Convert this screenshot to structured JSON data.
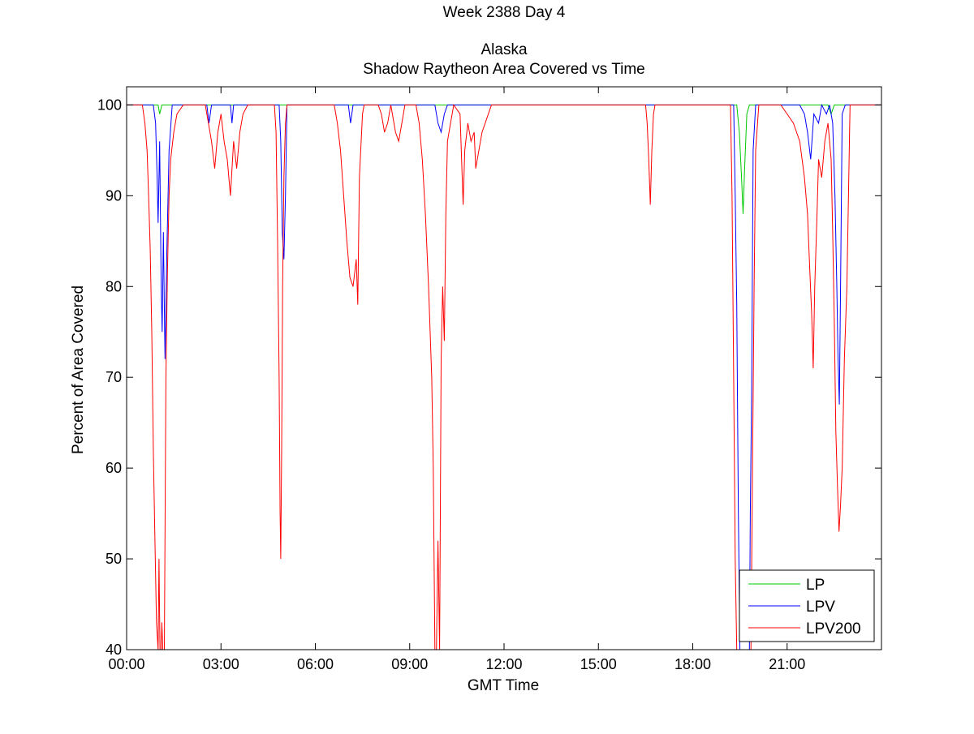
{
  "figure": {
    "title_line1": "Week 2388 Day 4",
    "title_line2": "Alaska",
    "title_line3": "Shadow Raytheon Area Covered vs Time"
  },
  "chart_data": {
    "type": "line",
    "title": "Week 2388 Day 4 / Alaska / Shadow Raytheon Area Covered vs Time",
    "xlabel": "GMT Time",
    "ylabel": "Percent of Area Covered",
    "x_unit": "hours GMT",
    "xlim": [
      0,
      24
    ],
    "ylim": [
      40,
      102
    ],
    "x_ticks": [
      0,
      3,
      6,
      9,
      12,
      15,
      18,
      21
    ],
    "x_tick_labels": [
      "00:00",
      "03:00",
      "06:00",
      "09:00",
      "12:00",
      "15:00",
      "18:00",
      "21:00"
    ],
    "y_ticks": [
      40,
      50,
      60,
      70,
      80,
      90,
      100
    ],
    "y_tick_labels": [
      "40",
      "50",
      "60",
      "70",
      "80",
      "90",
      "100"
    ],
    "grid": false,
    "legend_position": "bottom-right",
    "series": [
      {
        "name": "LP",
        "color": "#00c800",
        "points": [
          [
            0,
            100
          ],
          [
            1.0,
            100
          ],
          [
            1.05,
            99
          ],
          [
            1.12,
            100
          ],
          [
            19.4,
            100
          ],
          [
            19.48,
            97
          ],
          [
            19.55,
            92
          ],
          [
            19.6,
            88
          ],
          [
            19.65,
            93
          ],
          [
            19.72,
            99
          ],
          [
            19.8,
            100
          ],
          [
            22.3,
            100
          ],
          [
            22.4,
            99
          ],
          [
            22.5,
            100
          ],
          [
            24,
            100
          ]
        ]
      },
      {
        "name": "LPV",
        "color": "#0000ff",
        "points": [
          [
            0,
            100
          ],
          [
            0.85,
            100
          ],
          [
            0.92,
            98
          ],
          [
            0.97,
            92
          ],
          [
            1.0,
            87
          ],
          [
            1.05,
            96
          ],
          [
            1.1,
            80
          ],
          [
            1.13,
            75
          ],
          [
            1.17,
            86
          ],
          [
            1.22,
            72
          ],
          [
            1.28,
            84
          ],
          [
            1.35,
            95
          ],
          [
            1.45,
            100
          ],
          [
            2.55,
            100
          ],
          [
            2.62,
            98
          ],
          [
            2.7,
            100
          ],
          [
            3.3,
            100
          ],
          [
            3.35,
            98
          ],
          [
            3.4,
            100
          ],
          [
            4.85,
            100
          ],
          [
            4.9,
            96
          ],
          [
            4.95,
            86
          ],
          [
            5.0,
            83
          ],
          [
            5.05,
            90
          ],
          [
            5.1,
            100
          ],
          [
            7.05,
            100
          ],
          [
            7.12,
            98
          ],
          [
            7.2,
            100
          ],
          [
            9.8,
            100
          ],
          [
            9.9,
            98
          ],
          [
            10.0,
            97
          ],
          [
            10.1,
            99
          ],
          [
            10.2,
            100
          ],
          [
            19.3,
            100
          ],
          [
            19.35,
            90
          ],
          [
            19.4,
            78
          ],
          [
            19.45,
            55
          ],
          [
            19.5,
            40
          ],
          [
            19.55,
            40
          ],
          [
            19.6,
            40
          ],
          [
            19.65,
            40
          ],
          [
            19.7,
            40
          ],
          [
            19.75,
            40
          ],
          [
            19.8,
            40
          ],
          [
            19.83,
            55
          ],
          [
            19.87,
            68
          ],
          [
            19.92,
            95
          ],
          [
            20.0,
            100
          ],
          [
            21.4,
            100
          ],
          [
            21.55,
            99
          ],
          [
            21.65,
            97
          ],
          [
            21.75,
            94
          ],
          [
            21.85,
            99
          ],
          [
            22.0,
            98
          ],
          [
            22.1,
            100
          ],
          [
            22.25,
            99
          ],
          [
            22.35,
            100
          ],
          [
            22.45,
            98
          ],
          [
            22.52,
            90
          ],
          [
            22.58,
            80
          ],
          [
            22.62,
            72
          ],
          [
            22.66,
            67
          ],
          [
            22.7,
            80
          ],
          [
            22.75,
            99
          ],
          [
            22.85,
            100
          ],
          [
            24,
            100
          ]
        ]
      },
      {
        "name": "LPV200",
        "color": "#ff0000",
        "points": [
          [
            0,
            100
          ],
          [
            0.5,
            100
          ],
          [
            0.58,
            98
          ],
          [
            0.65,
            95
          ],
          [
            0.7,
            90
          ],
          [
            0.75,
            84
          ],
          [
            0.8,
            75
          ],
          [
            0.85,
            62
          ],
          [
            0.9,
            52
          ],
          [
            0.95,
            43
          ],
          [
            1.0,
            40
          ],
          [
            1.03,
            50
          ],
          [
            1.06,
            40
          ],
          [
            1.1,
            40
          ],
          [
            1.12,
            43
          ],
          [
            1.15,
            40
          ],
          [
            1.2,
            40
          ],
          [
            1.25,
            70
          ],
          [
            1.3,
            82
          ],
          [
            1.35,
            90
          ],
          [
            1.4,
            94
          ],
          [
            1.5,
            97
          ],
          [
            1.6,
            99
          ],
          [
            1.8,
            100
          ],
          [
            2.5,
            100
          ],
          [
            2.6,
            98
          ],
          [
            2.7,
            96
          ],
          [
            2.8,
            93
          ],
          [
            2.9,
            97
          ],
          [
            3.0,
            99
          ],
          [
            3.1,
            96
          ],
          [
            3.2,
            94
          ],
          [
            3.3,
            90
          ],
          [
            3.4,
            96
          ],
          [
            3.5,
            93
          ],
          [
            3.6,
            97
          ],
          [
            3.7,
            99
          ],
          [
            3.85,
            100
          ],
          [
            4.7,
            100
          ],
          [
            4.75,
            97
          ],
          [
            4.8,
            85
          ],
          [
            4.85,
            70
          ],
          [
            4.88,
            55
          ],
          [
            4.9,
            50
          ],
          [
            4.93,
            62
          ],
          [
            4.96,
            80
          ],
          [
            5.0,
            92
          ],
          [
            5.05,
            98
          ],
          [
            5.1,
            100
          ],
          [
            6.6,
            100
          ],
          [
            6.7,
            98
          ],
          [
            6.8,
            95
          ],
          [
            6.9,
            90
          ],
          [
            7.0,
            85
          ],
          [
            7.1,
            81
          ],
          [
            7.2,
            80
          ],
          [
            7.3,
            83
          ],
          [
            7.35,
            78
          ],
          [
            7.4,
            92
          ],
          [
            7.5,
            99
          ],
          [
            7.55,
            100
          ],
          [
            8.0,
            100
          ],
          [
            8.1,
            99
          ],
          [
            8.2,
            97
          ],
          [
            8.3,
            98
          ],
          [
            8.4,
            100
          ],
          [
            8.55,
            97
          ],
          [
            8.65,
            96
          ],
          [
            8.75,
            98
          ],
          [
            8.85,
            100
          ],
          [
            9.2,
            100
          ],
          [
            9.3,
            98
          ],
          [
            9.4,
            94
          ],
          [
            9.5,
            88
          ],
          [
            9.6,
            80
          ],
          [
            9.7,
            70
          ],
          [
            9.75,
            60
          ],
          [
            9.8,
            40
          ],
          [
            9.85,
            40
          ],
          [
            9.9,
            52
          ],
          [
            9.95,
            40
          ],
          [
            10.0,
            72
          ],
          [
            10.05,
            80
          ],
          [
            10.1,
            74
          ],
          [
            10.15,
            88
          ],
          [
            10.2,
            96
          ],
          [
            10.3,
            98
          ],
          [
            10.4,
            100
          ],
          [
            10.6,
            99
          ],
          [
            10.7,
            89
          ],
          [
            10.75,
            95
          ],
          [
            10.85,
            98
          ],
          [
            10.95,
            96
          ],
          [
            11.05,
            97
          ],
          [
            11.1,
            93
          ],
          [
            11.2,
            95
          ],
          [
            11.3,
            97
          ],
          [
            11.4,
            98
          ],
          [
            11.5,
            99
          ],
          [
            11.6,
            100
          ],
          [
            16.5,
            100
          ],
          [
            16.55,
            98
          ],
          [
            16.6,
            94
          ],
          [
            16.65,
            89
          ],
          [
            16.7,
            95
          ],
          [
            16.75,
            99
          ],
          [
            16.8,
            100
          ],
          [
            19.2,
            100
          ],
          [
            19.25,
            90
          ],
          [
            19.3,
            70
          ],
          [
            19.35,
            50
          ],
          [
            19.4,
            40
          ],
          [
            19.5,
            40
          ],
          [
            19.6,
            40
          ],
          [
            19.7,
            40
          ],
          [
            19.75,
            40
          ],
          [
            19.82,
            40
          ],
          [
            19.85,
            40
          ],
          [
            19.9,
            60
          ],
          [
            19.95,
            80
          ],
          [
            20.0,
            95
          ],
          [
            20.1,
            100
          ],
          [
            20.8,
            100
          ],
          [
            21.0,
            99
          ],
          [
            21.2,
            98
          ],
          [
            21.4,
            96
          ],
          [
            21.55,
            92
          ],
          [
            21.65,
            88
          ],
          [
            21.72,
            82
          ],
          [
            21.78,
            77
          ],
          [
            21.83,
            71
          ],
          [
            21.88,
            80
          ],
          [
            21.95,
            88
          ],
          [
            22.0,
            94
          ],
          [
            22.1,
            92
          ],
          [
            22.2,
            96
          ],
          [
            22.3,
            98
          ],
          [
            22.4,
            94
          ],
          [
            22.45,
            86
          ],
          [
            22.5,
            76
          ],
          [
            22.55,
            64
          ],
          [
            22.6,
            58
          ],
          [
            22.65,
            53
          ],
          [
            22.7,
            56
          ],
          [
            22.75,
            60
          ],
          [
            22.82,
            72
          ],
          [
            22.9,
            80
          ],
          [
            23.0,
            100
          ],
          [
            24,
            100
          ]
        ]
      }
    ]
  }
}
